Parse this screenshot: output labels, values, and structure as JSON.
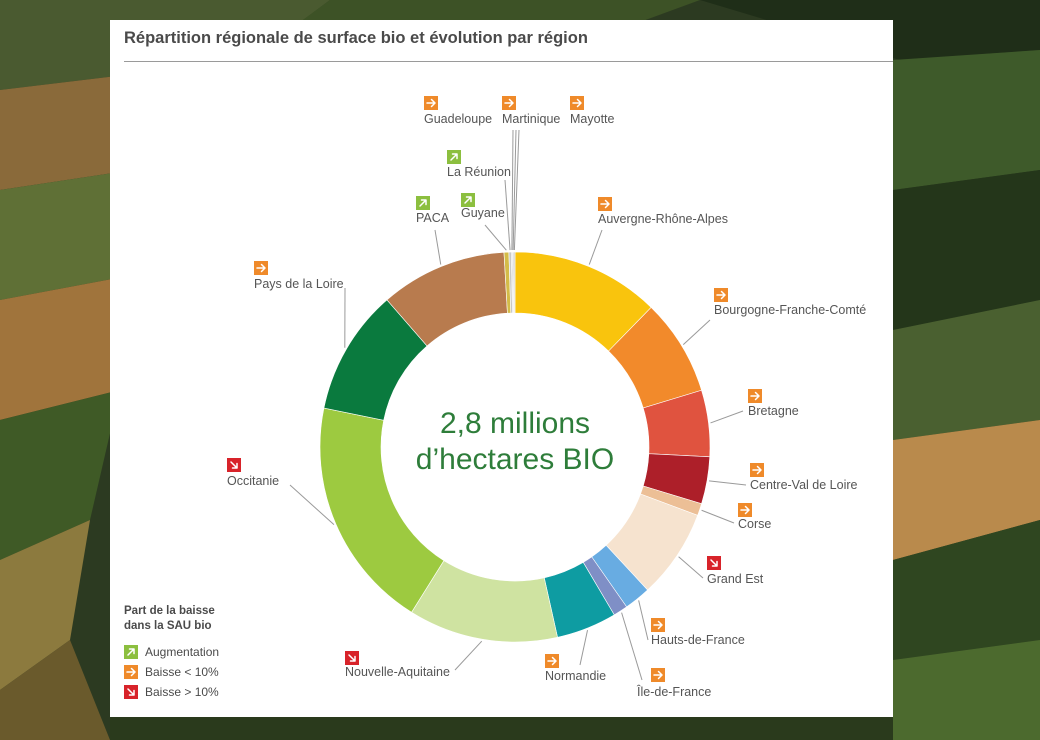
{
  "header": {
    "title": "Répartition régionale de surface bio et évolution par région"
  },
  "center_text": {
    "line1": "2,8 millions",
    "line2": "d’hectares BIO"
  },
  "legend": {
    "title_line1": "Part de la baisse",
    "title_line2": "dans la SAU bio",
    "items": [
      {
        "key": "up",
        "label": "Augmentation",
        "color": "#8cbf3f"
      },
      {
        "key": "flat",
        "label": "Baisse < 10%",
        "color": "#ef8a2a"
      },
      {
        "key": "down",
        "label": "Baisse > 10%",
        "color": "#d8232a"
      }
    ]
  },
  "colors": {
    "center_text": "#2e7d3a",
    "leader_line": "#9a9a9a",
    "label_text": "#555555"
  },
  "chart_data": {
    "type": "donut",
    "title": "Répartition régionale de surface bio et évolution par région",
    "total_label": "2,8 millions d’hectares BIO",
    "segments": [
      {
        "region": "Auvergne-Rhône-Alpes",
        "share": 12.3,
        "trend": "flat",
        "color": "#f9c40d"
      },
      {
        "region": "Bourgogne-Franche-Comté",
        "share": 8.0,
        "trend": "flat",
        "color": "#f28a2b"
      },
      {
        "region": "Bretagne",
        "share": 5.5,
        "trend": "flat",
        "color": "#e0533f"
      },
      {
        "region": "Centre-Val de Loire",
        "share": 3.9,
        "trend": "flat",
        "color": "#ad1f29"
      },
      {
        "region": "Corse",
        "share": 1.0,
        "trend": "flat",
        "color": "#ecbf96"
      },
      {
        "region": "Grand Est",
        "share": 7.4,
        "trend": "down",
        "color": "#f6e3cf"
      },
      {
        "region": "Hauts-de-France",
        "share": 2.2,
        "trend": "flat",
        "color": "#68ace2"
      },
      {
        "region": "Île-de-France",
        "share": 1.2,
        "trend": "flat",
        "color": "#7f8fc6"
      },
      {
        "region": "Normandie",
        "share": 5.0,
        "trend": "flat",
        "color": "#0e9ca2"
      },
      {
        "region": "Nouvelle-Aquitaine",
        "share": 12.4,
        "trend": "down",
        "color": "#cfe3a1"
      },
      {
        "region": "Occitanie",
        "share": 19.3,
        "trend": "down",
        "color": "#9dca40"
      },
      {
        "region": "Pays de la Loire",
        "share": 10.4,
        "trend": "flat",
        "color": "#0a7a3e"
      },
      {
        "region": "PACA",
        "share": 10.5,
        "trend": "up",
        "color": "#b87b4e"
      },
      {
        "region": "Guyane",
        "share": 0.4,
        "trend": "up",
        "color": "#d4bc48"
      },
      {
        "region": "La Réunion",
        "share": 0.2,
        "trend": "up",
        "color": "#c8c8c8"
      },
      {
        "region": "Guadeloupe",
        "share": 0.1,
        "trend": "flat",
        "color": "#c8c8c8"
      },
      {
        "region": "Martinique",
        "share": 0.1,
        "trend": "flat",
        "color": "#c8c8c8"
      },
      {
        "region": "Mayotte",
        "share": 0.1,
        "trend": "flat",
        "color": "#c8c8c8"
      }
    ]
  }
}
